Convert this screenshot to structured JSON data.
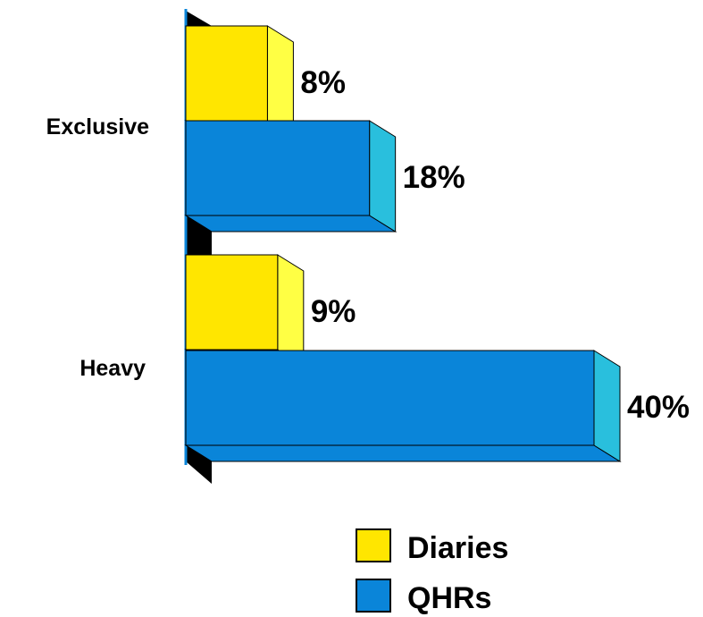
{
  "chart_data": {
    "type": "bar",
    "orientation": "horizontal",
    "style": "3d",
    "title": "",
    "xlabel": "",
    "ylabel": "",
    "categories": [
      "Exclusive",
      "Heavy"
    ],
    "series": [
      {
        "name": "Diaries",
        "values": [
          8,
          9
        ],
        "value_labels": [
          "8%",
          "9%"
        ],
        "color": "#FFE600",
        "side_color": "#FFFF44"
      },
      {
        "name": "QHRs",
        "values": [
          18,
          40
        ],
        "value_labels": [
          "18%",
          "40%"
        ],
        "color": "#0A85D9",
        "side_color": "#29BFDD"
      }
    ],
    "xlim": [
      0,
      40
    ],
    "grid": false,
    "legend": {
      "position": "bottom-right",
      "swatch_border": "#000000"
    },
    "axis_color": "#0A85D9",
    "floor_color": "#000000"
  }
}
